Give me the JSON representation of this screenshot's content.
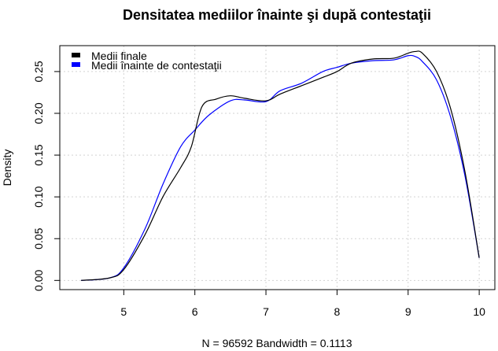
{
  "chart_data": {
    "type": "line",
    "title": "Densitatea mediilor înainte şi după contestaţii",
    "xlabel": "N = 96592   Bandwidth = 0.1113",
    "ylabel": "Density",
    "xlim": [
      4.1,
      10.22
    ],
    "ylim": [
      -0.011,
      0.281
    ],
    "x_ticks": [
      5,
      6,
      7,
      8,
      9,
      10
    ],
    "y_ticks": [
      0.0,
      0.05,
      0.1,
      0.15,
      0.2,
      0.25
    ],
    "x_tick_labels": [
      "5",
      "6",
      "7",
      "8",
      "9",
      "10"
    ],
    "y_tick_labels": [
      "0.00",
      "0.05",
      "0.10",
      "0.15",
      "0.20",
      "0.25"
    ],
    "grid": true,
    "legend_position": "top-left",
    "series": [
      {
        "name": "Medii finale",
        "color": "#000000",
        "x": [
          4.4,
          4.8,
          5.0,
          5.3,
          5.55,
          5.8,
          5.95,
          6.1,
          6.3,
          6.5,
          6.7,
          7.0,
          7.2,
          7.5,
          7.8,
          8.0,
          8.2,
          8.5,
          8.8,
          9.0,
          9.1,
          9.2,
          9.4,
          9.6,
          9.8,
          10.0
        ],
        "y": [
          0.0,
          0.003,
          0.013,
          0.055,
          0.1,
          0.135,
          0.16,
          0.208,
          0.217,
          0.221,
          0.218,
          0.215,
          0.223,
          0.233,
          0.243,
          0.25,
          0.26,
          0.265,
          0.266,
          0.272,
          0.274,
          0.272,
          0.25,
          0.205,
          0.13,
          0.027
        ]
      },
      {
        "name": "Medii înainte de contestaţii",
        "color": "#0000ff",
        "x": [
          4.4,
          4.8,
          5.0,
          5.3,
          5.55,
          5.8,
          6.0,
          6.2,
          6.5,
          6.7,
          7.0,
          7.2,
          7.5,
          7.8,
          8.0,
          8.2,
          8.5,
          8.8,
          9.0,
          9.1,
          9.2,
          9.4,
          9.6,
          9.8,
          10.0
        ],
        "y": [
          0.0,
          0.003,
          0.015,
          0.062,
          0.115,
          0.16,
          0.18,
          0.198,
          0.215,
          0.216,
          0.214,
          0.227,
          0.236,
          0.25,
          0.255,
          0.26,
          0.263,
          0.264,
          0.269,
          0.268,
          0.262,
          0.24,
          0.195,
          0.125,
          0.027
        ]
      }
    ]
  }
}
